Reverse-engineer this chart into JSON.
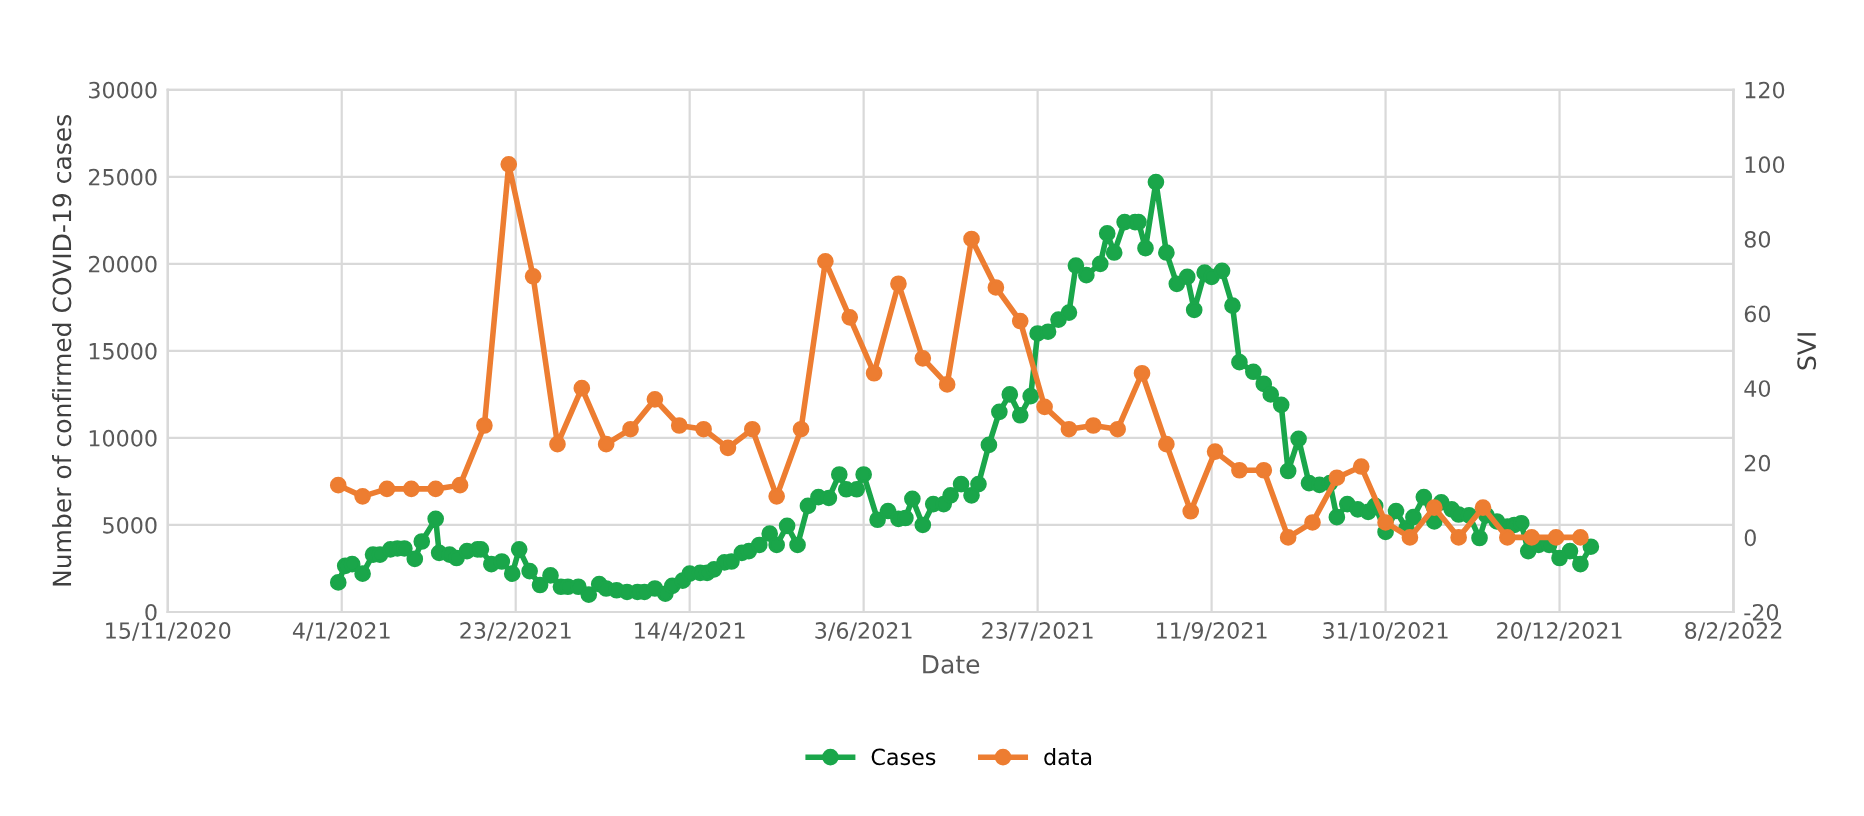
{
  "chart_data": {
    "type": "line",
    "xlabel": "Date",
    "ylabel": "Number of confirmed COVID-19 cases",
    "y2label": "SVI",
    "xlim": [
      "2020-11-15",
      "2022-02-08"
    ],
    "xticks": [
      {
        "value": "2020-11-15",
        "label": "15/11/2020"
      },
      {
        "value": "2021-01-04",
        "label": "4/1/2021"
      },
      {
        "value": "2021-02-23",
        "label": "23/2/2021"
      },
      {
        "value": "2021-04-14",
        "label": "14/4/2021"
      },
      {
        "value": "2021-06-03",
        "label": "3/6/2021"
      },
      {
        "value": "2021-07-23",
        "label": "23/7/2021"
      },
      {
        "value": "2021-09-11",
        "label": "11/9/2021"
      },
      {
        "value": "2021-10-31",
        "label": "31/10/2021"
      },
      {
        "value": "2021-12-20",
        "label": "20/12/2021"
      },
      {
        "value": "2022-02-08",
        "label": "8/2/2022"
      }
    ],
    "ylim": [
      0,
      30000
    ],
    "yticks": [
      0,
      5000,
      10000,
      15000,
      20000,
      25000,
      30000
    ],
    "y2lim": [
      -20,
      120
    ],
    "y2ticks": [
      -20,
      0,
      20,
      40,
      60,
      80,
      100,
      120
    ],
    "grid": true,
    "legend": "bottom",
    "marker": "circle",
    "line_style": "solid",
    "series": [
      {
        "name": "Cases",
        "color": "#1aa64a",
        "x": [
          "2021-01-03",
          "2021-01-05",
          "2021-01-07",
          "2021-01-10",
          "2021-01-13",
          "2021-01-15",
          "2021-01-18",
          "2021-01-20",
          "2021-01-22",
          "2021-01-25",
          "2021-01-27",
          "2021-01-31",
          "2021-02-01",
          "2021-02-04",
          "2021-02-06",
          "2021-02-09",
          "2021-02-12",
          "2021-02-13",
          "2021-02-16",
          "2021-02-19",
          "2021-02-22",
          "2021-02-24",
          "2021-02-27",
          "2021-03-02",
          "2021-03-05",
          "2021-03-08",
          "2021-03-10",
          "2021-03-13",
          "2021-03-16",
          "2021-03-19",
          "2021-03-21",
          "2021-03-24",
          "2021-03-27",
          "2021-03-30",
          "2021-04-01",
          "2021-04-04",
          "2021-04-07",
          "2021-04-09",
          "2021-04-12",
          "2021-04-14",
          "2021-04-17",
          "2021-04-19",
          "2021-04-21",
          "2021-04-24",
          "2021-04-26",
          "2021-04-29",
          "2021-05-01",
          "2021-05-04",
          "2021-05-07",
          "2021-05-09",
          "2021-05-12",
          "2021-05-15",
          "2021-05-18",
          "2021-05-21",
          "2021-05-24",
          "2021-05-27",
          "2021-05-29",
          "2021-06-01",
          "2021-06-03",
          "2021-06-07",
          "2021-06-10",
          "2021-06-13",
          "2021-06-15",
          "2021-06-17",
          "2021-06-20",
          "2021-06-23",
          "2021-06-26",
          "2021-06-28",
          "2021-07-01",
          "2021-07-04",
          "2021-07-06",
          "2021-07-09",
          "2021-07-12",
          "2021-07-15",
          "2021-07-18",
          "2021-07-21",
          "2021-07-23",
          "2021-07-26",
          "2021-07-29",
          "2021-08-01",
          "2021-08-03",
          "2021-08-06",
          "2021-08-10",
          "2021-08-12",
          "2021-08-14",
          "2021-08-17",
          "2021-08-20",
          "2021-08-21",
          "2021-08-23",
          "2021-08-26",
          "2021-08-29",
          "2021-09-01",
          "2021-09-04",
          "2021-09-06",
          "2021-09-09",
          "2021-09-11",
          "2021-09-14",
          "2021-09-17",
          "2021-09-19",
          "2021-09-23",
          "2021-09-26",
          "2021-09-28",
          "2021-10-01",
          "2021-10-03",
          "2021-10-06",
          "2021-10-09",
          "2021-10-12",
          "2021-10-15",
          "2021-10-17",
          "2021-10-20",
          "2021-10-23",
          "2021-10-26",
          "2021-10-28",
          "2021-10-31",
          "2021-11-03",
          "2021-11-06",
          "2021-11-08",
          "2021-11-11",
          "2021-11-14",
          "2021-11-16",
          "2021-11-19",
          "2021-11-21",
          "2021-11-24",
          "2021-11-27",
          "2021-11-29",
          "2021-12-02",
          "2021-12-05",
          "2021-12-07",
          "2021-12-09",
          "2021-12-11",
          "2021-12-14",
          "2021-12-17",
          "2021-12-20",
          "2021-12-23",
          "2021-12-26",
          "2021-12-29"
        ],
        "values": [
          1700,
          2650,
          2750,
          2200,
          3300,
          3300,
          3600,
          3650,
          3650,
          3050,
          4050,
          5350,
          3400,
          3300,
          3100,
          3500,
          3600,
          3600,
          2750,
          2900,
          2200,
          3600,
          2350,
          1550,
          2100,
          1450,
          1450,
          1450,
          1000,
          1600,
          1350,
          1250,
          1150,
          1150,
          1150,
          1350,
          1050,
          1500,
          1800,
          2200,
          2250,
          2250,
          2450,
          2850,
          2900,
          3400,
          3500,
          3850,
          4500,
          3850,
          4950,
          3850,
          6100,
          6600,
          6550,
          7900,
          7050,
          7050,
          7900,
          5300,
          5800,
          5350,
          5400,
          6500,
          5000,
          6200,
          6200,
          6700,
          7350,
          6700,
          7350,
          9600,
          11500,
          12500,
          11300,
          12400,
          16000,
          16100,
          16800,
          17200,
          19900,
          19350,
          20000,
          21750,
          20650,
          22400,
          22400,
          22400,
          20900,
          24700,
          20650,
          18850,
          19250,
          17350,
          19500,
          19250,
          19600,
          17600,
          14350,
          13800,
          13100,
          12500,
          11900,
          8100,
          9950,
          7400,
          7300,
          7400,
          5450,
          6200,
          5900,
          5750,
          6100,
          4600,
          5800,
          4800,
          5450,
          6600,
          5200,
          6300,
          5900,
          5600,
          5550,
          4250,
          5550,
          5200,
          4900,
          5000,
          5100,
          3500,
          3850,
          3850,
          3100,
          3500,
          2750,
          3750
        ]
      },
      {
        "name": "data",
        "color": "#ed7d31",
        "axis": "y2",
        "x": [
          "2021-01-03",
          "2021-01-10",
          "2021-01-17",
          "2021-01-24",
          "2021-01-31",
          "2021-02-07",
          "2021-02-14",
          "2021-02-21",
          "2021-02-28",
          "2021-03-07",
          "2021-03-14",
          "2021-03-21",
          "2021-03-28",
          "2021-04-04",
          "2021-04-11",
          "2021-04-18",
          "2021-04-25",
          "2021-05-02",
          "2021-05-09",
          "2021-05-16",
          "2021-05-23",
          "2021-05-30",
          "2021-06-06",
          "2021-06-13",
          "2021-06-20",
          "2021-06-27",
          "2021-07-04",
          "2021-07-11",
          "2021-07-18",
          "2021-07-25",
          "2021-08-01",
          "2021-08-08",
          "2021-08-15",
          "2021-08-22",
          "2021-08-29",
          "2021-09-05",
          "2021-09-12",
          "2021-09-19",
          "2021-09-26",
          "2021-10-03",
          "2021-10-10",
          "2021-10-17",
          "2021-10-24",
          "2021-10-31",
          "2021-11-07",
          "2021-11-14",
          "2021-11-21",
          "2021-11-28",
          "2021-12-05",
          "2021-12-12",
          "2021-12-19",
          "2021-12-26"
        ],
        "values": [
          14,
          11,
          13,
          13,
          13,
          14,
          30,
          100,
          70,
          25,
          40,
          25,
          29,
          37,
          30,
          29,
          24,
          29,
          11,
          29,
          74,
          59,
          44,
          68,
          48,
          41,
          80,
          67,
          58,
          35,
          29,
          30,
          29,
          44,
          25,
          7,
          23,
          18,
          18,
          0,
          4,
          16,
          19,
          4,
          0,
          8,
          0,
          8,
          0,
          0,
          0,
          0
        ]
      }
    ]
  }
}
